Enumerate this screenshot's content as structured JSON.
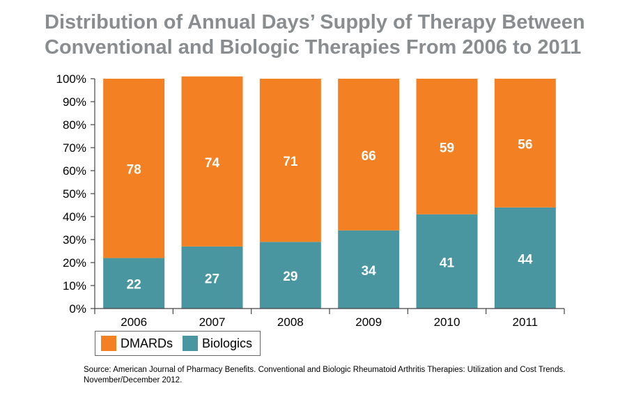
{
  "title_lines": [
    "Distribution of Annual Days’ Supply of Therapy Between",
    "Conventional and Biologic Therapies From 2006 to 2011"
  ],
  "source_lines": [
    "Source: American Journal of Pharmacy Benefits. Conventional and Biologic Rheumatoid Arthritis Therapies: Utilization and Cost Trends.",
    "November/December 2012."
  ],
  "colors": {
    "dmards": "#f48024",
    "biologics": "#4a96a0",
    "title": "#8a8d90",
    "axis": "#444444"
  },
  "chart_data": {
    "type": "bar",
    "stacked": true,
    "title": "Distribution of Annual Days’ Supply of Therapy Between Conventional and Biologic Therapies From 2006 to 2011",
    "categories": [
      "2006",
      "2007",
      "2008",
      "2009",
      "2010",
      "2011"
    ],
    "series": [
      {
        "name": "Biologics",
        "values": [
          22,
          27,
          29,
          34,
          41,
          44
        ],
        "labels": [
          "22",
          "27",
          "29",
          "34",
          "41",
          "44"
        ]
      },
      {
        "name": "DMARDs",
        "values": [
          78,
          74,
          71,
          66,
          59,
          56
        ],
        "labels": [
          "78",
          "74",
          "71",
          "66",
          "59",
          "56"
        ]
      }
    ],
    "ylim": [
      0,
      100
    ],
    "yticks": [
      0,
      10,
      20,
      30,
      40,
      50,
      60,
      70,
      80,
      90,
      100
    ],
    "ytick_labels": [
      "0%",
      "10%",
      "20%",
      "30%",
      "40%",
      "50%",
      "60%",
      "70%",
      "80%",
      "90%",
      "100%"
    ],
    "xlabel": "",
    "ylabel": "",
    "grid": false,
    "legend": {
      "position": "bottom-left",
      "entries": [
        "DMARDs",
        "Biologics"
      ]
    }
  }
}
